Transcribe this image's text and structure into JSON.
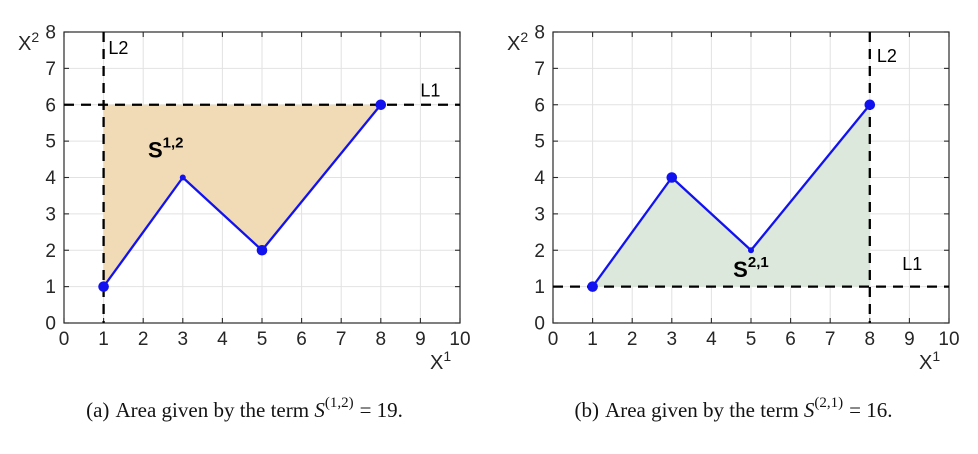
{
  "figure": {
    "background": "#ffffff"
  },
  "style": {
    "line_color": "#1212ef",
    "marker_color": "#1212ef",
    "dashed_color": "#000000",
    "grid_color": "#e2e2e2",
    "axis_color": "#2a2a2a",
    "tick_label_color": "#262626",
    "region_label_color": "#000000"
  },
  "chart_data": [
    {
      "type": "line",
      "panel": "a",
      "xlabel_base": "X",
      "xlabel_sup": "1",
      "ylabel_base": "X",
      "ylabel_sup": "2",
      "xlim": [
        0,
        10
      ],
      "ylim": [
        0,
        8
      ],
      "xticks": [
        0,
        1,
        2,
        3,
        4,
        5,
        6,
        7,
        8,
        9,
        10
      ],
      "yticks": [
        0,
        1,
        2,
        3,
        4,
        5,
        6,
        7,
        8
      ],
      "grid": true,
      "series": [
        {
          "name": "piecewise-linear-path",
          "points": [
            [
              1,
              1
            ],
            [
              3,
              4
            ],
            [
              5,
              2
            ],
            [
              8,
              6
            ]
          ]
        }
      ],
      "markers": [
        {
          "x": 1,
          "y": 1,
          "size": "large"
        },
        {
          "x": 3,
          "y": 4,
          "size": "small"
        },
        {
          "x": 5,
          "y": 2,
          "size": "large"
        },
        {
          "x": 8,
          "y": 6,
          "size": "large"
        }
      ],
      "reference_lines": [
        {
          "label": "L1",
          "orientation": "horizontal",
          "value": 6,
          "label_x": 9.0,
          "label_y": 6.22
        },
        {
          "label": "L2",
          "orientation": "vertical",
          "value": 1,
          "label_x": 1.12,
          "label_y": 7.4
        }
      ],
      "shaded_region": {
        "fill": "#f0dbb6",
        "polygon": [
          [
            1,
            1
          ],
          [
            3,
            4
          ],
          [
            5,
            2
          ],
          [
            8,
            6
          ],
          [
            1,
            6
          ]
        ],
        "label_base": "S",
        "label_sup": "1,2",
        "label_x": 2.12,
        "label_y": 4.55,
        "area": 19
      }
    },
    {
      "type": "line",
      "panel": "b",
      "xlabel_base": "X",
      "xlabel_sup": "1",
      "ylabel_base": "X",
      "ylabel_sup": "2",
      "xlim": [
        0,
        10
      ],
      "ylim": [
        0,
        8
      ],
      "xticks": [
        0,
        1,
        2,
        3,
        4,
        5,
        6,
        7,
        8,
        9,
        10
      ],
      "yticks": [
        0,
        1,
        2,
        3,
        4,
        5,
        6,
        7,
        8
      ],
      "grid": true,
      "series": [
        {
          "name": "piecewise-linear-path",
          "points": [
            [
              1,
              1
            ],
            [
              3,
              4
            ],
            [
              5,
              2
            ],
            [
              8,
              6
            ]
          ]
        }
      ],
      "markers": [
        {
          "x": 1,
          "y": 1,
          "size": "large"
        },
        {
          "x": 3,
          "y": 4,
          "size": "large"
        },
        {
          "x": 5,
          "y": 2,
          "size": "small"
        },
        {
          "x": 8,
          "y": 6,
          "size": "large"
        }
      ],
      "reference_lines": [
        {
          "label": "L1",
          "orientation": "horizontal",
          "value": 1,
          "label_x": 8.82,
          "label_y": 1.46
        },
        {
          "label": "L2",
          "orientation": "vertical",
          "value": 8,
          "label_x": 8.18,
          "label_y": 7.18
        }
      ],
      "shaded_region": {
        "fill": "#dce8db",
        "polygon": [
          [
            1,
            1
          ],
          [
            3,
            4
          ],
          [
            5,
            2
          ],
          [
            8,
            6
          ],
          [
            8,
            1
          ]
        ],
        "label_base": "S",
        "label_sup": "2,1",
        "label_x": 4.55,
        "label_y": 1.27,
        "area": 16
      }
    }
  ],
  "captions": [
    {
      "prefix": "(a)",
      "body": "Area given by the term",
      "term_base": "S",
      "term_sup": "(1,2)",
      "value": "= 19."
    },
    {
      "prefix": "(b)",
      "body": "Area given by the term",
      "term_base": "S",
      "term_sup": "(2,1)",
      "value": "= 16."
    }
  ]
}
